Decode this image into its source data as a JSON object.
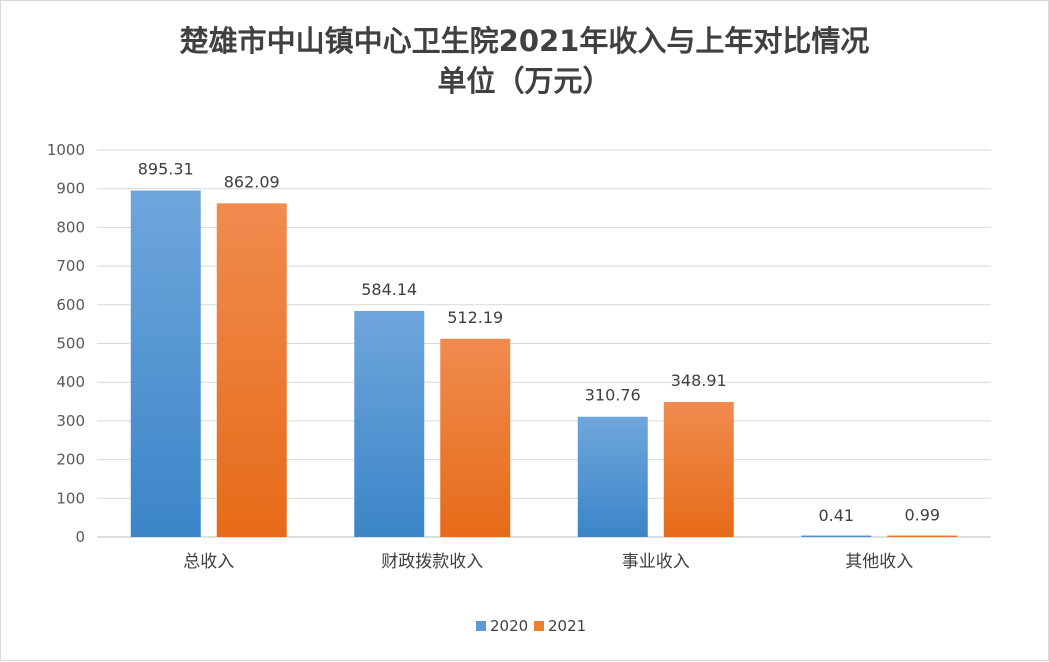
{
  "chart_data": {
    "type": "bar",
    "title": "楚雄市中山镇中心卫生院2021年收入与上年对比情况",
    "subtitle": "单位（万元）",
    "categories": [
      "总收入",
      "财政拨款收入",
      "事业收入",
      "其他收入"
    ],
    "series": [
      {
        "name": "2020",
        "values": [
          895.31,
          584.14,
          310.76,
          0.41
        ],
        "labels": [
          "895.31",
          "584.14",
          "310.76",
          "0.41"
        ],
        "color": "#5b9bd5"
      },
      {
        "name": "2021",
        "values": [
          862.09,
          512.19,
          348.91,
          0.99
        ],
        "labels": [
          "862.09",
          "512.19",
          "348.91",
          "0.99"
        ],
        "color": "#ed7d31"
      }
    ],
    "ylim": [
      0,
      1000
    ],
    "yticks": [
      "0",
      "100",
      "200",
      "300",
      "400",
      "500",
      "600",
      "700",
      "800",
      "900",
      "1000"
    ],
    "grid": true,
    "legend": "bottom"
  }
}
